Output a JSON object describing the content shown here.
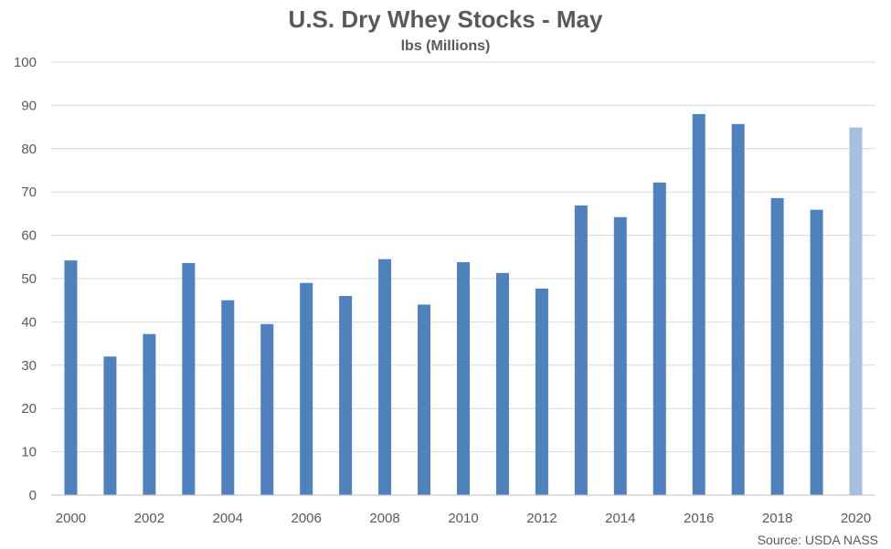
{
  "chart_data": {
    "type": "bar",
    "title": "U.S. Dry Whey Stocks - May",
    "subtitle": "lbs (Millions)",
    "source": "Source: USDA NASS",
    "categories": [
      "2000",
      "2001",
      "2002",
      "2003",
      "2004",
      "2005",
      "2006",
      "2007",
      "2008",
      "2009",
      "2010",
      "2011",
      "2012",
      "2013",
      "2014",
      "2015",
      "2016",
      "2017",
      "2018",
      "2019",
      "2020"
    ],
    "values": [
      54.2,
      32.0,
      37.2,
      53.6,
      45.0,
      39.5,
      49.0,
      46.0,
      54.5,
      44.0,
      53.8,
      51.3,
      47.7,
      66.9,
      64.2,
      72.2,
      88.0,
      85.7,
      68.6,
      65.9,
      84.9
    ],
    "x_tick_labels": [
      "2000",
      "2002",
      "2004",
      "2006",
      "2008",
      "2010",
      "2012",
      "2014",
      "2016",
      "2018",
      "2020"
    ],
    "y_tick_labels": [
      "0",
      "10",
      "20",
      "30",
      "40",
      "50",
      "60",
      "70",
      "80",
      "90",
      "100"
    ],
    "ylim": [
      0,
      100
    ],
    "grid": true,
    "legend": "none",
    "colors": {
      "bar": "#4f81bd",
      "highlight_bar": "#a7bfde",
      "grid": "#d9d9d9",
      "text": "#595959"
    },
    "highlight_category": "2020"
  }
}
